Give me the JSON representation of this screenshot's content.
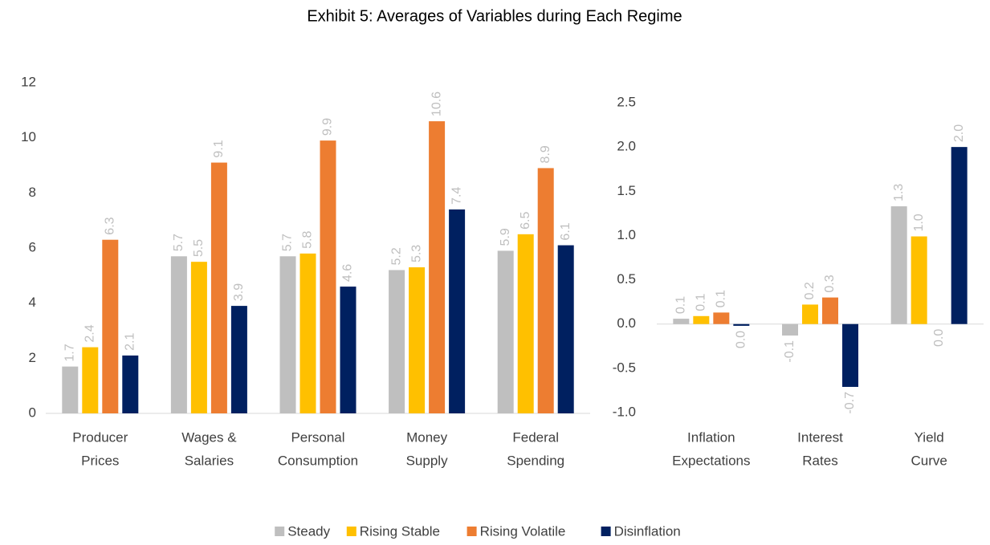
{
  "title": "Exhibit 5: Averages of Variables during Each Regime",
  "legend": [
    {
      "name": "Steady",
      "color": "#bfbfbf"
    },
    {
      "name": "Rising Stable",
      "color": "#ffc000"
    },
    {
      "name": "Rising Volatile",
      "color": "#ed7d31"
    },
    {
      "name": "Disinflation",
      "color": "#002060"
    }
  ],
  "chart_data": [
    {
      "type": "bar",
      "categories": [
        [
          "Producer",
          "Prices"
        ],
        [
          "Wages &",
          "Salaries"
        ],
        [
          "Personal",
          "Consumption"
        ],
        [
          "Money",
          "Supply"
        ],
        [
          "Federal",
          "Spending"
        ]
      ],
      "series": [
        {
          "values": [
            1.7,
            5.7,
            5.7,
            5.2,
            5.9
          ]
        },
        {
          "values": [
            2.4,
            5.5,
            5.8,
            5.3,
            6.5
          ]
        },
        {
          "values": [
            6.3,
            9.1,
            9.9,
            10.6,
            8.9
          ]
        },
        {
          "values": [
            2.1,
            3.9,
            4.6,
            7.4,
            6.1
          ]
        }
      ],
      "ylim": [
        0,
        12
      ],
      "yticks": [
        0,
        2,
        4,
        6,
        8,
        10,
        12
      ]
    },
    {
      "type": "bar",
      "categories": [
        [
          "Inflation",
          "Expectations"
        ],
        [
          "Interest",
          "Rates"
        ],
        [
          "Yield",
          "Curve"
        ]
      ],
      "series": [
        {
          "values": [
            0.06,
            -0.13,
            1.33
          ],
          "value_labels": [
            "0.1",
            "-0.1",
            "1.3"
          ]
        },
        {
          "values": [
            0.09,
            0.22,
            0.99
          ],
          "value_labels": [
            "0.1",
            "0.2",
            "1.0"
          ]
        },
        {
          "values": [
            0.13,
            0.3,
            0
          ],
          "value_labels": [
            "0.1",
            "0.3",
            "0.0"
          ]
        },
        {
          "values": [
            -0.02,
            -0.71,
            2.0
          ],
          "value_labels": [
            "0.0",
            "-0.7",
            "2.0"
          ]
        }
      ],
      "ylim": [
        -1,
        2.5
      ],
      "yticks": [
        {
          "value": -1,
          "label": "-1.0"
        },
        {
          "value": -0.5,
          "label": "-0.5"
        },
        {
          "value": 0,
          "label": "0.0"
        },
        {
          "value": 0.5,
          "label": "0.5"
        },
        {
          "value": 1,
          "label": "1.0"
        },
        {
          "value": 1.5,
          "label": "1.5"
        },
        {
          "value": 2,
          "label": "2.0"
        },
        {
          "value": 2.5,
          "label": "2.5"
        }
      ]
    }
  ]
}
